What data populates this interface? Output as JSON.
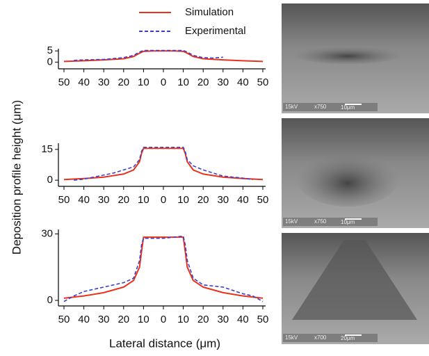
{
  "figure": {
    "ylabel": "Deposition profile height (μm)",
    "xlabel": "Lateral distance (μm)"
  },
  "images": [
    {
      "voltage": "15kV",
      "magnification": "x750",
      "scale": "10μm"
    },
    {
      "voltage": "15kV",
      "magnification": "x750",
      "scale": "10μm"
    },
    {
      "voltage": "15kV",
      "magnification": "x700",
      "scale": "20μm"
    }
  ],
  "chart_data": [
    {
      "type": "line",
      "xlim": [
        -50,
        50
      ],
      "ylim": [
        -3,
        6
      ],
      "yticks": [
        0,
        5
      ],
      "xticks": [
        {
          "value": -50,
          "label": "50"
        },
        {
          "value": -40,
          "label": "40"
        },
        {
          "value": -30,
          "label": "30"
        },
        {
          "value": -20,
          "label": "20"
        },
        {
          "value": -10,
          "label": "10"
        },
        0,
        10,
        20,
        30,
        40,
        50
      ],
      "series": [
        {
          "name": "Simulation",
          "color": "#e8331c",
          "line_style": "solid",
          "x": [
            -50,
            -40,
            -30,
            -20,
            -15,
            -12,
            -10,
            -5,
            0,
            5,
            10,
            12,
            15,
            20,
            30,
            40,
            50
          ],
          "values": [
            0.3,
            0.6,
            1,
            1.5,
            2.5,
            4,
            4.8,
            5,
            5,
            5,
            4.8,
            4,
            2.5,
            1.5,
            1,
            0.6,
            0.3
          ]
        },
        {
          "name": "Experimental",
          "color": "#3a3fd0",
          "line_style": "dashed",
          "x": [
            -45,
            -40,
            -30,
            -20,
            -15,
            -12,
            -10,
            0,
            10,
            12,
            15,
            20,
            25,
            30
          ],
          "values": [
            0.8,
            1,
            1.2,
            2,
            3,
            4.5,
            5.2,
            5.2,
            5.2,
            4.5,
            3,
            2,
            1.8,
            2.2
          ]
        }
      ]
    },
    {
      "type": "line",
      "xlim": [
        -50,
        50
      ],
      "ylim": [
        -3,
        18
      ],
      "yticks": [
        0,
        15
      ],
      "xticks": [
        {
          "value": -50,
          "label": "50"
        },
        {
          "value": -40,
          "label": "40"
        },
        {
          "value": -30,
          "label": "30"
        },
        {
          "value": -20,
          "label": "20"
        },
        {
          "value": -10,
          "label": "10"
        },
        0,
        10,
        20,
        30,
        40,
        50
      ],
      "series": [
        {
          "color": "#e8331c",
          "line_style": "solid",
          "x": [
            -50,
            -40,
            -30,
            -20,
            -15,
            -12,
            -11,
            -10,
            0,
            10,
            11,
            12,
            15,
            20,
            30,
            40,
            50
          ],
          "values": [
            0.3,
            0.8,
            1.5,
            3,
            5,
            9,
            13,
            15.5,
            15.5,
            15.5,
            13,
            9,
            5,
            3,
            1.5,
            0.8,
            0.3
          ]
        },
        {
          "color": "#3a3fd0",
          "line_style": "dashed",
          "x": [
            -45,
            -40,
            -35,
            -30,
            -25,
            -20,
            -15,
            -12,
            -11,
            -10,
            0,
            10,
            11,
            12,
            15,
            20,
            25,
            30,
            40,
            45
          ],
          "values": [
            0,
            0.5,
            1.5,
            2.5,
            3.5,
            5,
            6.5,
            10,
            14,
            16,
            16,
            16,
            14,
            10,
            7,
            5,
            3.5,
            2,
            1,
            0.3
          ]
        }
      ]
    },
    {
      "type": "line",
      "xlim": [
        -50,
        50
      ],
      "ylim": [
        -2.5,
        32
      ],
      "yticks": [
        0,
        30
      ],
      "xticks": [
        {
          "value": -50,
          "label": "50"
        },
        {
          "value": -40,
          "label": "40"
        },
        {
          "value": -30,
          "label": "30"
        },
        {
          "value": -20,
          "label": "20"
        },
        {
          "value": -10,
          "label": "10"
        },
        0,
        10,
        20,
        30,
        40,
        50
      ],
      "series": [
        {
          "color": "#e8331c",
          "line_style": "solid",
          "x": [
            -50,
            -40,
            -30,
            -20,
            -15,
            -12,
            -11,
            -10,
            0,
            10,
            11,
            12,
            15,
            20,
            30,
            40,
            50
          ],
          "values": [
            1,
            2,
            3.5,
            6,
            9,
            15,
            22,
            28.5,
            28.5,
            28.5,
            22,
            15,
            9,
            6,
            3.5,
            2,
            1
          ]
        },
        {
          "color": "#3a3fd0",
          "line_style": "dashed",
          "x": [
            -50,
            -45,
            -40,
            -30,
            -20,
            -15,
            -12,
            -11,
            -10,
            0,
            10,
            11,
            12,
            15,
            20,
            30,
            40,
            45,
            50
          ],
          "values": [
            -0.5,
            2,
            4,
            6,
            8,
            10,
            18,
            25,
            28,
            28,
            29,
            25,
            18,
            10,
            7,
            6,
            3,
            2,
            -0.5
          ]
        }
      ]
    }
  ]
}
